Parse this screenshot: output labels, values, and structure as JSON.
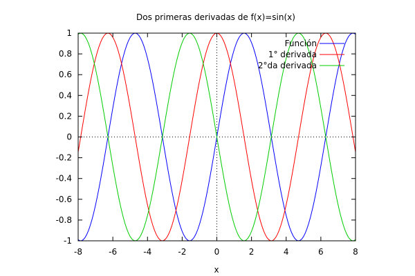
{
  "chart_data": {
    "type": "line",
    "title": "Dos primeras derivadas de f(x)=sin(x)",
    "xlabel": "x",
    "ylabel": "",
    "xlim": [
      -8,
      8
    ],
    "ylim": [
      -1,
      1
    ],
    "xticks": [
      -8,
      -6,
      -4,
      -2,
      0,
      2,
      4,
      6,
      8
    ],
    "yticks": [
      -1,
      -0.8,
      -0.6,
      -0.4,
      -0.2,
      0,
      0.2,
      0.4,
      0.6,
      0.8,
      1
    ],
    "grid": false,
    "zero_axes": "dotted",
    "legend_position": "top-right",
    "sample_step": 0.1,
    "series": [
      {
        "name": "Función",
        "color": "#0000ff",
        "function": "sin(x)"
      },
      {
        "name": "1° derivada",
        "color": "#ff0000",
        "function": "cos(x)"
      },
      {
        "name": "2°da derivada",
        "color": "#00cc00",
        "function": "-sin(x)"
      }
    ]
  }
}
